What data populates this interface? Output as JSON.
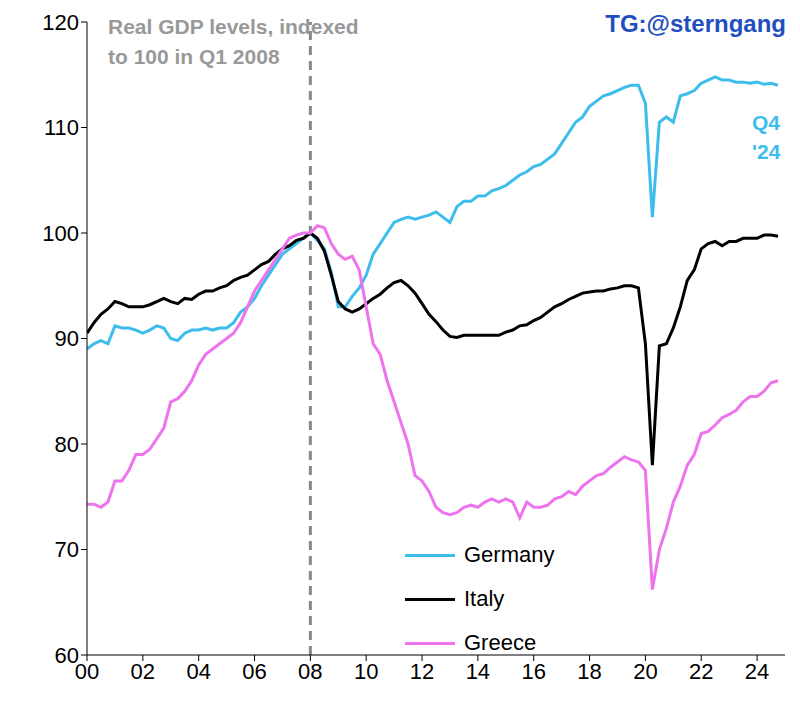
{
  "chart_data": {
    "type": "line",
    "title": "Real GDP levels, indexed\nto 100 in Q1 2008",
    "watermark": "TG:@sterngang",
    "annotations": [
      {
        "text": "Q4\n'24",
        "color": "#3DBDEB"
      }
    ],
    "x": [
      2000,
      2000.25,
      2000.5,
      2000.75,
      2001,
      2001.25,
      2001.5,
      2001.75,
      2002,
      2002.25,
      2002.5,
      2002.75,
      2003,
      2003.25,
      2003.5,
      2003.75,
      2004,
      2004.25,
      2004.5,
      2004.75,
      2005,
      2005.25,
      2005.5,
      2005.75,
      2006,
      2006.25,
      2006.5,
      2006.75,
      2007,
      2007.25,
      2007.5,
      2007.75,
      2008,
      2008.25,
      2008.5,
      2008.75,
      2009,
      2009.25,
      2009.5,
      2009.75,
      2010,
      2010.25,
      2010.5,
      2010.75,
      2011,
      2011.25,
      2011.5,
      2011.75,
      2012,
      2012.25,
      2012.5,
      2012.75,
      2013,
      2013.25,
      2013.5,
      2013.75,
      2014,
      2014.25,
      2014.5,
      2014.75,
      2015,
      2015.25,
      2015.5,
      2015.75,
      2016,
      2016.25,
      2016.5,
      2016.75,
      2017,
      2017.25,
      2017.5,
      2017.75,
      2018,
      2018.25,
      2018.5,
      2018.75,
      2019,
      2019.25,
      2019.5,
      2019.75,
      2020,
      2020.25,
      2020.5,
      2020.75,
      2021,
      2021.25,
      2021.5,
      2021.75,
      2022,
      2022.25,
      2022.5,
      2022.75,
      2023,
      2023.25,
      2023.5,
      2023.75,
      2024,
      2024.25,
      2024.5,
      2024.75
    ],
    "series": [
      {
        "name": "Germany",
        "color": "#3DBDEB",
        "values": [
          89,
          89.5,
          89.8,
          89.5,
          91.2,
          91,
          91,
          90.8,
          90.5,
          90.8,
          91.2,
          91,
          90,
          89.8,
          90.5,
          90.8,
          90.8,
          91,
          90.8,
          91,
          91,
          91.5,
          92.5,
          93,
          93.8,
          95,
          96,
          97,
          98,
          98.5,
          99,
          99.5,
          100,
          99.3,
          98.5,
          96.3,
          93,
          93,
          94,
          94.8,
          96,
          98,
          99,
          100,
          101,
          101.3,
          101.5,
          101.3,
          101.5,
          101.7,
          102,
          101.5,
          101,
          102.5,
          103,
          103,
          103.5,
          103.5,
          104,
          104.2,
          104.5,
          105,
          105.5,
          105.8,
          106.3,
          106.5,
          107,
          107.5,
          108.5,
          109.5,
          110.5,
          111,
          112,
          112.5,
          113,
          113.2,
          113.5,
          113.8,
          114,
          114,
          112.3,
          101.5,
          110.5,
          111,
          110.5,
          113,
          113.2,
          113.5,
          114.2,
          114.5,
          114.8,
          114.5,
          114.5,
          114.3,
          114.3,
          114.2,
          114.3,
          114.1,
          114.2,
          114
        ]
      },
      {
        "name": "Italy",
        "color": "#000000",
        "values": [
          90.5,
          91.5,
          92.3,
          92.8,
          93.5,
          93.3,
          93,
          93,
          93,
          93.2,
          93.5,
          93.8,
          93.5,
          93.3,
          93.8,
          93.7,
          94.2,
          94.5,
          94.5,
          94.8,
          95,
          95.5,
          95.8,
          96,
          96.5,
          97,
          97.3,
          98,
          98.5,
          98.8,
          99.3,
          99.5,
          100,
          99.5,
          98.3,
          96,
          93.5,
          92.8,
          92.5,
          92.8,
          93.3,
          93.8,
          94.2,
          94.8,
          95.3,
          95.5,
          95,
          94.3,
          93.3,
          92.3,
          91.6,
          90.8,
          90.2,
          90.1,
          90.3,
          90.3,
          90.3,
          90.3,
          90.3,
          90.3,
          90.6,
          90.8,
          91.2,
          91.3,
          91.7,
          92,
          92.5,
          93,
          93.3,
          93.7,
          94,
          94.3,
          94.4,
          94.5,
          94.5,
          94.7,
          94.8,
          95,
          95,
          94.8,
          89.5,
          78,
          89.3,
          89.5,
          91,
          93,
          95.5,
          96.5,
          98.5,
          99,
          99.2,
          98.8,
          99.2,
          99.2,
          99.5,
          99.5,
          99.5,
          99.8,
          99.8,
          99.7
        ]
      },
      {
        "name": "Greece",
        "color": "#EE74EE",
        "values": [
          74.3,
          74.3,
          74,
          74.5,
          76.5,
          76.5,
          77.5,
          79,
          79,
          79.5,
          80.5,
          81.5,
          84,
          84.3,
          85,
          86,
          87.5,
          88.5,
          89,
          89.5,
          90,
          90.5,
          91.5,
          93,
          94.5,
          95.5,
          96.5,
          97.5,
          98.5,
          99.5,
          99.8,
          100,
          100,
          100.7,
          100.5,
          99,
          98,
          97.5,
          97.8,
          96.5,
          93,
          89.5,
          88.5,
          86,
          84,
          82,
          80,
          77,
          76.5,
          75.5,
          74,
          73.5,
          73.3,
          73.5,
          74,
          74.2,
          74,
          74.5,
          74.8,
          74.5,
          74.8,
          74.5,
          73,
          74.5,
          74,
          74,
          74.2,
          74.8,
          75,
          75.5,
          75.2,
          76,
          76.5,
          77,
          77.2,
          77.8,
          78.3,
          78.8,
          78.5,
          78.3,
          77.5,
          66.2,
          70,
          72,
          74.5,
          76,
          78,
          79,
          81,
          81.2,
          81.8,
          82.5,
          82.8,
          83.2,
          84,
          84.5,
          84.5,
          85,
          85.8,
          86
        ]
      }
    ],
    "xlim": [
      2000,
      2025
    ],
    "xticks": [
      {
        "value": 2000,
        "label": "00"
      },
      {
        "value": 2002,
        "label": "02"
      },
      {
        "value": 2004,
        "label": "04"
      },
      {
        "value": 2006,
        "label": "06"
      },
      {
        "value": 2008,
        "label": "08"
      },
      {
        "value": 2010,
        "label": "10"
      },
      {
        "value": 2012,
        "label": "12"
      },
      {
        "value": 2014,
        "label": "14"
      },
      {
        "value": 2016,
        "label": "16"
      },
      {
        "value": 2018,
        "label": "18"
      },
      {
        "value": 2020,
        "label": "20"
      },
      {
        "value": 2022,
        "label": "22"
      },
      {
        "value": 2024,
        "label": "24"
      }
    ],
    "ylim": [
      60,
      120
    ],
    "yticks": [
      60,
      70,
      80,
      90,
      100,
      110,
      120
    ],
    "reference_lines": [
      {
        "x": 2008,
        "color": "#888888",
        "line_style": "dashed"
      }
    ],
    "grid": false,
    "legend": "lower center"
  }
}
